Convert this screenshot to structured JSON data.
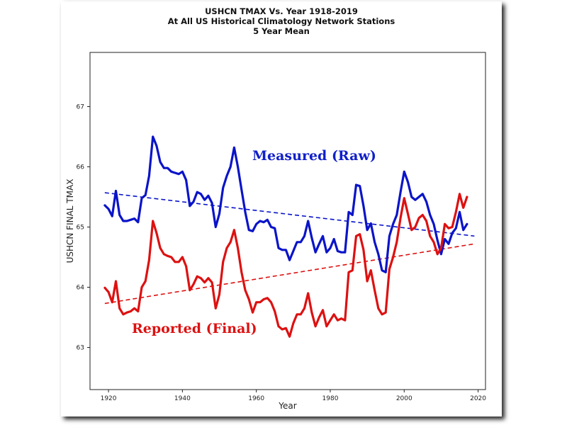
{
  "chart": {
    "title": "USHCN TMAX Vs. Year 1918-2019",
    "subtitle": "At All US Historical Climatology Network Stations",
    "subtitle2": "5 Year Mean"
  },
  "chart_data": {
    "type": "line",
    "title": "USHCN TMAX Vs. Year 1918-2019",
    "xlabel": "Year",
    "ylabel": "USHCN FINAL TMAX",
    "xlim": [
      1915,
      2022
    ],
    "ylim": [
      62.3,
      67.9
    ],
    "xticks": [
      1920,
      1940,
      1960,
      1980,
      2000,
      2020
    ],
    "yticks": [
      63,
      64,
      65,
      66,
      67
    ],
    "grid": false,
    "annotations": [
      "Measured (Raw)",
      "Reported (Final)"
    ],
    "series": [
      {
        "name": "Measured (Raw)",
        "color": "#0a14c8",
        "style": "solid",
        "x": [
          1919,
          1920,
          1921,
          1922,
          1923,
          1924,
          1925,
          1926,
          1927,
          1928,
          1929,
          1930,
          1931,
          1932,
          1933,
          1934,
          1935,
          1936,
          1937,
          1938,
          1939,
          1940,
          1941,
          1942,
          1943,
          1944,
          1945,
          1946,
          1947,
          1948,
          1949,
          1950,
          1951,
          1952,
          1953,
          1954,
          1955,
          1956,
          1957,
          1958,
          1959,
          1960,
          1961,
          1962,
          1963,
          1964,
          1965,
          1966,
          1967,
          1968,
          1969,
          1970,
          1971,
          1972,
          1973,
          1974,
          1975,
          1976,
          1977,
          1978,
          1979,
          1980,
          1981,
          1982,
          1983,
          1984,
          1985,
          1986,
          1987,
          1988,
          1989,
          1990,
          1991,
          1992,
          1993,
          1994,
          1995,
          1996,
          1997,
          1998,
          1999,
          2000,
          2001,
          2002,
          2003,
          2004,
          2005,
          2006,
          2007,
          2008,
          2009,
          2010,
          2011,
          2012,
          2013,
          2014,
          2015,
          2016,
          2017
        ],
        "y": [
          65.36,
          65.3,
          65.18,
          65.6,
          65.2,
          65.1,
          65.1,
          65.12,
          65.14,
          65.08,
          65.48,
          65.53,
          65.85,
          66.5,
          66.35,
          66.08,
          65.98,
          65.98,
          65.92,
          65.9,
          65.88,
          65.92,
          65.78,
          65.35,
          65.42,
          65.58,
          65.55,
          65.45,
          65.52,
          65.4,
          65.0,
          65.22,
          65.65,
          65.85,
          66.0,
          66.32,
          66.0,
          65.62,
          65.25,
          64.95,
          64.93,
          65.05,
          65.1,
          65.08,
          65.12,
          65.0,
          64.98,
          64.65,
          64.62,
          64.62,
          64.45,
          64.6,
          64.75,
          64.75,
          64.85,
          65.1,
          64.82,
          64.58,
          64.72,
          64.85,
          64.58,
          64.65,
          64.8,
          64.6,
          64.58,
          64.58,
          65.25,
          65.2,
          65.7,
          65.68,
          65.35,
          64.95,
          65.06,
          64.75,
          64.55,
          64.28,
          64.25,
          64.85,
          65.05,
          65.2,
          65.58,
          65.92,
          65.75,
          65.5,
          65.45,
          65.5,
          65.55,
          65.42,
          65.2,
          65.05,
          64.78,
          64.55,
          64.8,
          64.72,
          64.9,
          64.98,
          65.25,
          64.95,
          65.05
        ],
        "trend": [
          [
            1919,
            65.57
          ],
          [
            2019,
            64.85
          ]
        ]
      },
      {
        "name": "Reported (Final)",
        "color": "#dd1111",
        "style": "solid",
        "x": [
          1919,
          1920,
          1921,
          1922,
          1923,
          1924,
          1925,
          1926,
          1927,
          1928,
          1929,
          1930,
          1931,
          1932,
          1933,
          1934,
          1935,
          1936,
          1937,
          1938,
          1939,
          1940,
          1941,
          1942,
          1943,
          1944,
          1945,
          1946,
          1947,
          1948,
          1949,
          1950,
          1951,
          1952,
          1953,
          1954,
          1955,
          1956,
          1957,
          1958,
          1959,
          1960,
          1961,
          1962,
          1963,
          1964,
          1965,
          1966,
          1967,
          1968,
          1969,
          1970,
          1971,
          1972,
          1973,
          1974,
          1975,
          1976,
          1977,
          1978,
          1979,
          1980,
          1981,
          1982,
          1983,
          1984,
          1985,
          1986,
          1987,
          1988,
          1989,
          1990,
          1991,
          1992,
          1993,
          1994,
          1995,
          1996,
          1997,
          1998,
          1999,
          2000,
          2001,
          2002,
          2003,
          2004,
          2005,
          2006,
          2007,
          2008,
          2009,
          2010,
          2011,
          2012,
          2013,
          2014,
          2015,
          2016,
          2017
        ],
        "y": [
          63.99,
          63.92,
          63.75,
          64.1,
          63.65,
          63.55,
          63.58,
          63.6,
          63.65,
          63.6,
          64.0,
          64.1,
          64.45,
          65.1,
          64.9,
          64.65,
          64.55,
          64.52,
          64.5,
          64.42,
          64.42,
          64.5,
          64.35,
          63.95,
          64.05,
          64.18,
          64.15,
          64.08,
          64.15,
          64.08,
          63.65,
          63.88,
          64.42,
          64.65,
          64.75,
          64.95,
          64.65,
          64.25,
          63.95,
          63.8,
          63.58,
          63.75,
          63.75,
          63.8,
          63.82,
          63.75,
          63.6,
          63.35,
          63.3,
          63.32,
          63.18,
          63.4,
          63.55,
          63.55,
          63.65,
          63.9,
          63.58,
          63.35,
          63.5,
          63.62,
          63.35,
          63.45,
          63.55,
          63.45,
          63.48,
          63.45,
          64.25,
          64.28,
          64.85,
          64.88,
          64.62,
          64.1,
          64.28,
          63.95,
          63.65,
          63.55,
          63.58,
          64.3,
          64.5,
          64.75,
          65.15,
          65.48,
          65.22,
          64.95,
          65.0,
          65.15,
          65.2,
          65.1,
          64.85,
          64.75,
          64.55,
          64.65,
          65.05,
          64.98,
          65.0,
          65.25,
          65.55,
          65.32,
          65.5
        ],
        "trend": [
          [
            1919,
            63.73
          ],
          [
            2019,
            64.72
          ]
        ]
      }
    ]
  }
}
